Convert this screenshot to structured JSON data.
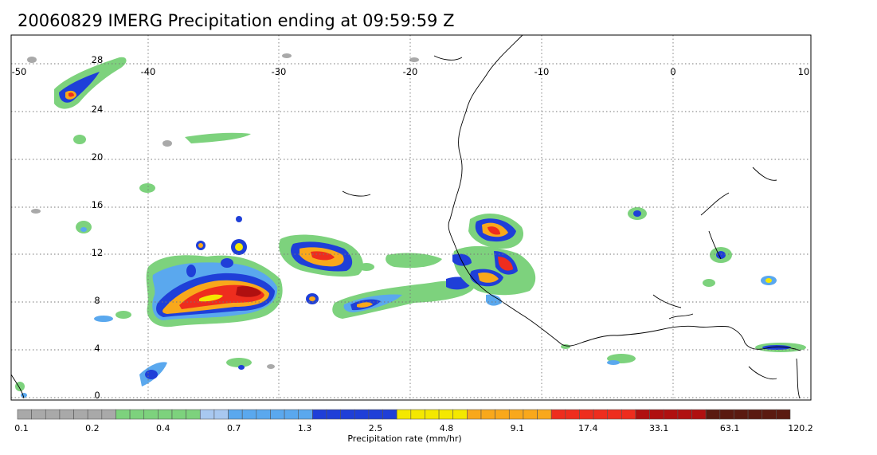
{
  "title": "20060829 IMERG Precipitation ending at 09:59:59 Z",
  "map": {
    "lon_range": [
      -50,
      10
    ],
    "lat_range": [
      -0.5,
      30
    ],
    "lon_ticks": [
      "-50",
      "-40",
      "-30",
      "-20",
      "-10",
      "0",
      "10"
    ],
    "lat_ticks": [
      "0",
      "4",
      "8",
      "12",
      "16",
      "20",
      "24",
      "28"
    ],
    "grid": "dotted"
  },
  "colorbar": {
    "label": "Precipitation rate (mm/hr)",
    "tick_labels": [
      "0.1",
      "0.2",
      "0.4",
      "0.7",
      "1.3",
      "2.5",
      "4.8",
      "9.1",
      "17.4",
      "33.1",
      "63.1",
      "120.2"
    ],
    "groups": [
      {
        "color": "#a9a9a9",
        "count": 7
      },
      {
        "color": "#7dd27d",
        "count": 6
      },
      {
        "color": "#a8c8f0",
        "count": 2
      },
      {
        "color": "#5aa8ee",
        "count": 6
      },
      {
        "color": "#1f3fd8",
        "count": 6
      },
      {
        "color": "#f4e800",
        "count": 5
      },
      {
        "color": "#f9a81b",
        "count": 6
      },
      {
        "color": "#ee2d1e",
        "count": 6
      },
      {
        "color": "#b01010",
        "count": 5
      },
      {
        "color": "#5a1a10",
        "count": 6
      }
    ]
  }
}
